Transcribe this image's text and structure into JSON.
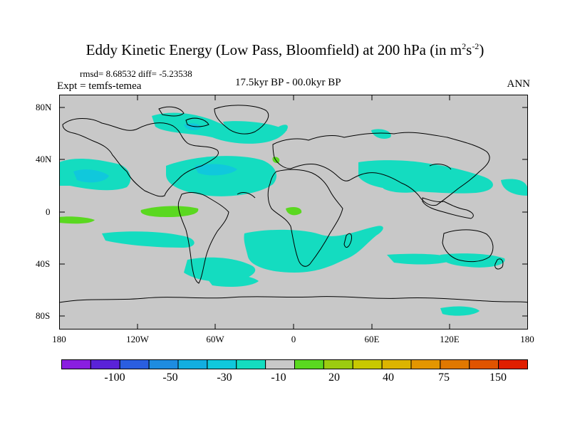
{
  "title": {
    "main": "Eddy Kinetic Energy (Low Pass, Bloomfield) at 200 hPa (in m",
    "sup1": "2",
    "mid": "s",
    "sup2": "-2",
    "end": ")"
  },
  "stats": "rmsd= 8.68532 diff= -5.23538",
  "expt": "Expt = temfs-temea",
  "period": "17.5kyr BP - 00.0kyr BP",
  "season": "ANN",
  "lat_labels": [
    "80N",
    "40N",
    "0",
    "40S",
    "80S"
  ],
  "lon_labels": [
    "180",
    "120W",
    "60W",
    "0",
    "60E",
    "120E",
    "180"
  ],
  "colorbar": {
    "colors": [
      "#8a1ee0",
      "#5a22d8",
      "#2a5ee0",
      "#1e8ce0",
      "#12aee0",
      "#10c8dc",
      "#14dcc0",
      "#c8c8c8",
      "#5ad820",
      "#9ccc10",
      "#c8c800",
      "#dcb400",
      "#e49600",
      "#e07800",
      "#e05400",
      "#e01e00"
    ],
    "labels": [
      "-100",
      "-50",
      "-30",
      "-10",
      "20",
      "40",
      "75",
      "150"
    ]
  },
  "map_colors": {
    "background": "#c8c8c8",
    "negative": "#14dcc0",
    "negative_strong": "#10c8dc",
    "positive": "#5ad820"
  }
}
